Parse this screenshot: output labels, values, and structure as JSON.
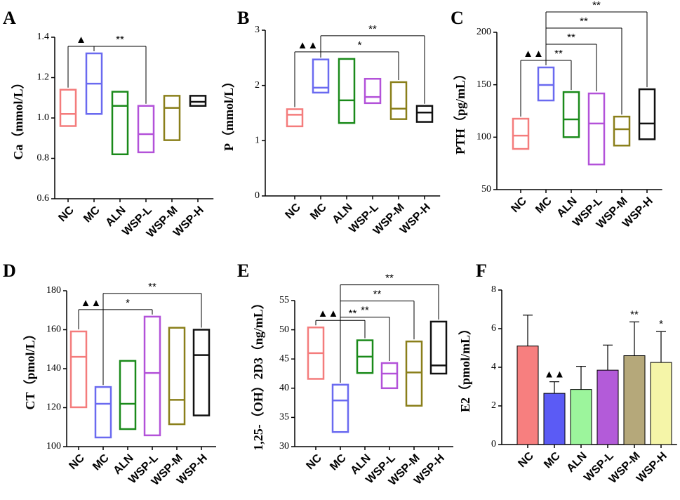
{
  "chart_data": [
    {
      "type": "range",
      "label": "A",
      "y_label": "Ca（mmol/L）",
      "categories": [
        "NC",
        "MC",
        "ALN",
        "WSP-L",
        "WSP-M",
        "WSP-H"
      ],
      "colors": [
        "#f47c7c",
        "#6a6af0",
        "#1a8a1a",
        "#b352d9",
        "#8a7f1a",
        "#111111"
      ],
      "min": [
        0.96,
        1.02,
        0.82,
        0.83,
        0.89,
        1.06
      ],
      "median": [
        1.02,
        1.17,
        1.06,
        0.92,
        1.05,
        1.08
      ],
      "max": [
        1.14,
        1.32,
        1.13,
        1.06,
        1.11,
        1.11
      ],
      "ylim": [
        0.6,
        1.4
      ],
      "yticks": [
        0.6,
        0.8,
        {
          "value": 1,
          "label": "1.0"
        },
        1.2,
        1.4
      ],
      "annotations": [
        {
          "text": "▲",
          "from": "NC",
          "to": "MC"
        },
        {
          "text": "**",
          "from": "MC",
          "to": "WSP-L"
        }
      ]
    },
    {
      "type": "range",
      "label": "B",
      "y_label": "P（mmol/L）",
      "categories": [
        "NC",
        "MC",
        "ALN",
        "WSP-L",
        "WSP-M",
        "WSP-H"
      ],
      "colors": [
        "#f47c7c",
        "#6a6af0",
        "#1a8a1a",
        "#b352d9",
        "#8a7f1a",
        "#111111"
      ],
      "min": [
        1.26,
        1.87,
        1.32,
        1.68,
        1.39,
        1.34
      ],
      "median": [
        1.47,
        1.96,
        1.73,
        1.79,
        1.58,
        1.51
      ],
      "max": [
        1.57,
        2.47,
        2.48,
        2.12,
        2.06,
        1.63
      ],
      "ylim": [
        0,
        3
      ],
      "yticks": [
        0,
        1,
        2,
        3
      ],
      "annotations": [
        {
          "text": "▲▲",
          "from": "NC",
          "to": "MC"
        },
        {
          "text": "*",
          "from": "MC",
          "to": "WSP-M"
        },
        {
          "text": "**",
          "from": "MC",
          "to": "WSP-H"
        }
      ]
    },
    {
      "type": "range",
      "label": "C",
      "y_label": "PTH（pg/mL）",
      "categories": [
        "NC",
        "MC",
        "ALN",
        "WSP-L",
        "WSP-M",
        "WSP-H"
      ],
      "colors": [
        "#f47c7c",
        "#6a6af0",
        "#1a8a1a",
        "#b352d9",
        "#8a7f1a",
        "#111111"
      ],
      "min": [
        88.8,
        135,
        100,
        74,
        92,
        98
      ],
      "median": [
        101.5,
        149.8,
        117,
        113,
        107.6,
        113
      ],
      "max": [
        117.6,
        166.5,
        143,
        141.7,
        119.6,
        145.7
      ],
      "ylim": [
        50,
        200
      ],
      "yticks": [
        50,
        100,
        150,
        200
      ],
      "annotations": [
        {
          "text": "▲▲",
          "from": "NC",
          "to": "MC"
        },
        {
          "text": "**",
          "from": "MC",
          "to": "ALN"
        },
        {
          "text": "**",
          "from": "MC",
          "to": "WSP-L"
        },
        {
          "text": "**",
          "from": "MC",
          "to": "WSP-M"
        },
        {
          "text": "**",
          "from": "MC",
          "to": "WSP-H"
        }
      ]
    },
    {
      "type": "range",
      "label": "D",
      "y_label": "CT（pmol/L）",
      "categories": [
        "NC",
        "MC",
        "ALN",
        "WSP-L",
        "WSP-M",
        "WSP-H"
      ],
      "colors": [
        "#f47c7c",
        "#6a6af0",
        "#1a8a1a",
        "#b352d9",
        "#8a7f1a",
        "#111111"
      ],
      "min": [
        120.2,
        104.7,
        109,
        105.8,
        111.5,
        116
      ],
      "median": [
        146.1,
        122,
        122,
        137.8,
        124,
        147
      ],
      "max": [
        159.1,
        130.6,
        144,
        166.7,
        161,
        160
      ],
      "ylim": [
        100,
        180
      ],
      "yticks": [
        100,
        120,
        140,
        160,
        180
      ],
      "annotations": [
        {
          "text": "▲▲",
          "from": "NC",
          "to": "MC"
        },
        {
          "text": "*",
          "from": "MC",
          "to": "WSP-L"
        },
        {
          "text": "**",
          "from": "MC",
          "to": "WSP-H"
        }
      ]
    },
    {
      "type": "range",
      "label": "E",
      "y_label": "1,25-（OH）2D3（ng/mL）",
      "categories": [
        "NC",
        "MC",
        "ALN",
        "WSP-L",
        "WSP-M",
        "WSP-H"
      ],
      "colors": [
        "#f47c7c",
        "#6a6af0",
        "#1a8a1a",
        "#b352d9",
        "#8a7f1a",
        "#111111"
      ],
      "min": [
        41.6,
        32.5,
        42.6,
        40,
        37,
        42.5
      ],
      "median": [
        46,
        37.9,
        45.4,
        42.5,
        42.7,
        43.9
      ],
      "max": [
        50.4,
        40.6,
        48.2,
        44.3,
        48,
        51.4
      ],
      "ylim": [
        30,
        55
      ],
      "yticks": [
        30,
        35,
        40,
        45,
        50,
        55
      ],
      "annotations": [
        {
          "text": "▲▲",
          "from": "NC",
          "to": "MC"
        },
        {
          "text": "**",
          "from": "MC",
          "to": "ALN"
        },
        {
          "text": "**",
          "from": "MC",
          "to": "WSP-L"
        },
        {
          "text": "**",
          "from": "MC",
          "to": "WSP-M"
        },
        {
          "text": "**",
          "from": "MC",
          "to": "WSP-H"
        }
      ]
    },
    {
      "type": "bar",
      "label": "F",
      "y_label": "E2（pmol/mL）",
      "categories": [
        "NC",
        "MC",
        "ALN",
        "WSP-L",
        "WSP-M",
        "WSP-H"
      ],
      "colors": [
        "#f77f7f",
        "#5b5bf5",
        "#9cf59c",
        "#b35bd9",
        "#b5a87a",
        "#f5f5a8"
      ],
      "values": [
        5.1,
        2.65,
        2.85,
        3.85,
        4.6,
        4.25
      ],
      "errors": [
        1.6,
        0.6,
        1.2,
        1.3,
        1.75,
        1.6
      ],
      "ylim": [
        0,
        8
      ],
      "yticks": [
        0,
        2,
        4,
        6,
        8
      ],
      "annotations": [
        {
          "text": "▲▲",
          "at": "MC"
        },
        {
          "text": "**",
          "at": "WSP-M"
        },
        {
          "text": "*",
          "at": "WSP-H"
        }
      ]
    }
  ]
}
